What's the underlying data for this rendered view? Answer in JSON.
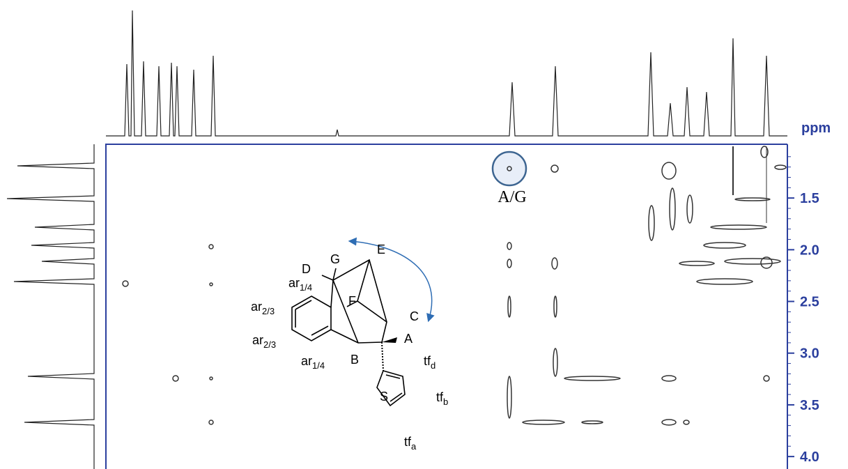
{
  "axis": {
    "label": "ppm",
    "range": [
      0.98,
      4.08
    ],
    "ticks": [
      {
        "value": 1.5,
        "label": "1.5"
      },
      {
        "value": 2.0,
        "label": "2.0"
      },
      {
        "value": 2.5,
        "label": "2.5"
      },
      {
        "value": 3.0,
        "label": "3.0"
      },
      {
        "value": 3.5,
        "label": "3.5"
      },
      {
        "value": 4.0,
        "label": "4.0"
      }
    ]
  },
  "annotation": "A/G",
  "molecule": {
    "atoms": [
      "G",
      "D",
      "E",
      "F",
      "C",
      "A",
      "B",
      "S"
    ],
    "groups": [
      {
        "base": "ar",
        "sub": "1/4"
      },
      {
        "base": "ar",
        "sub": "2/3"
      },
      {
        "base": "ar",
        "sub": "2/3"
      },
      {
        "base": "ar",
        "sub": "1/4"
      },
      {
        "base": "tf",
        "sub": "d"
      },
      {
        "base": "tf",
        "sub": "b"
      },
      {
        "base": "tf",
        "sub": "a"
      }
    ]
  }
}
